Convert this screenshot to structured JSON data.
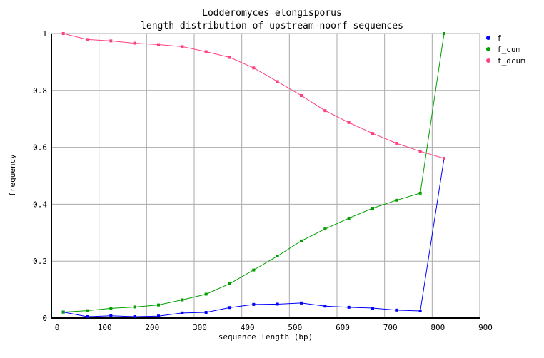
{
  "chart_data": {
    "type": "line",
    "title": "Lodderomyces elongisporus",
    "subtitle": "length distribution of upstream-noorf sequences",
    "xlabel": "sequence length (bp)",
    "ylabel": "frequency",
    "xlim": [
      0,
      900
    ],
    "ylim": [
      0,
      1
    ],
    "xticks": [
      0,
      100,
      200,
      300,
      400,
      500,
      600,
      700,
      800,
      900
    ],
    "yticks": [
      0,
      0.2,
      0.4,
      0.6,
      0.8,
      1
    ],
    "ytick_labels": [
      "0",
      "0.2",
      "0.4",
      "0.6",
      "0.8",
      "1"
    ],
    "grid": true,
    "legend_position": "right",
    "x": [
      25,
      75,
      125,
      175,
      225,
      275,
      325,
      375,
      425,
      475,
      525,
      575,
      625,
      675,
      725,
      775,
      825
    ],
    "series": [
      {
        "name": "f",
        "color": "#0000ff",
        "values": [
          0.021,
          0.005,
          0.008,
          0.005,
          0.007,
          0.018,
          0.02,
          0.037,
          0.048,
          0.049,
          0.053,
          0.042,
          0.038,
          0.035,
          0.028,
          0.025,
          0.561
        ]
      },
      {
        "name": "f_cum",
        "color": "#00a000",
        "values": [
          0.021,
          0.026,
          0.034,
          0.039,
          0.046,
          0.064,
          0.084,
          0.121,
          0.169,
          0.218,
          0.271,
          0.313,
          0.351,
          0.386,
          0.414,
          0.439,
          1.0
        ]
      },
      {
        "name": "f_dcum",
        "color": "#ff4080",
        "values": [
          1.0,
          0.979,
          0.974,
          0.966,
          0.961,
          0.954,
          0.936,
          0.916,
          0.879,
          0.831,
          0.782,
          0.729,
          0.687,
          0.649,
          0.614,
          0.586,
          0.561
        ]
      }
    ]
  }
}
